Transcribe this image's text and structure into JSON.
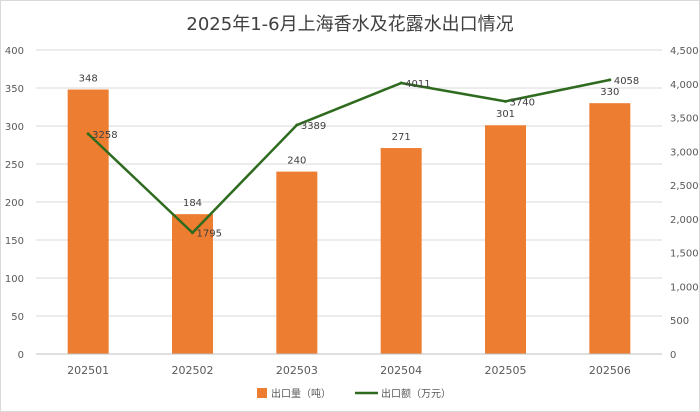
{
  "chart_data": {
    "type": "bar",
    "title": "2025年1-6月上海香水及花露水出口情况",
    "categories": [
      "202501",
      "202502",
      "202503",
      "202504",
      "202505",
      "202506"
    ],
    "series": [
      {
        "name": "出口量（吨）",
        "type": "bar",
        "axis": "left",
        "color": "#ed7d31",
        "values": [
          348,
          184,
          240,
          271,
          301,
          330
        ],
        "data_labels": [
          "348",
          "184",
          "240",
          "271",
          "301",
          "330"
        ]
      },
      {
        "name": "出口额（万元）",
        "type": "line",
        "axis": "right",
        "color": "#2e6b1f",
        "values": [
          3258,
          1795,
          3389,
          4011,
          3740,
          4058
        ],
        "data_labels": [
          "3258",
          "1795",
          "3389",
          "4011",
          "3740",
          "4058"
        ]
      }
    ],
    "y_left": {
      "range": [
        0,
        400
      ],
      "ticks": [
        0,
        50,
        100,
        150,
        200,
        250,
        300,
        350,
        400
      ],
      "tick_labels": [
        "0",
        "50",
        "100",
        "150",
        "200",
        "250",
        "300",
        "350",
        "400"
      ]
    },
    "y_right": {
      "range": [
        0,
        4500
      ],
      "ticks": [
        0,
        500,
        1000,
        1500,
        2000,
        2500,
        3000,
        3500,
        4000,
        4500
      ],
      "tick_labels": [
        "0",
        "500",
        "1,000",
        "1,500",
        "2,000",
        "2,500",
        "3,000",
        "3,500",
        "4,000",
        "4,500"
      ]
    },
    "grid": true,
    "legend_position": "bottom"
  }
}
